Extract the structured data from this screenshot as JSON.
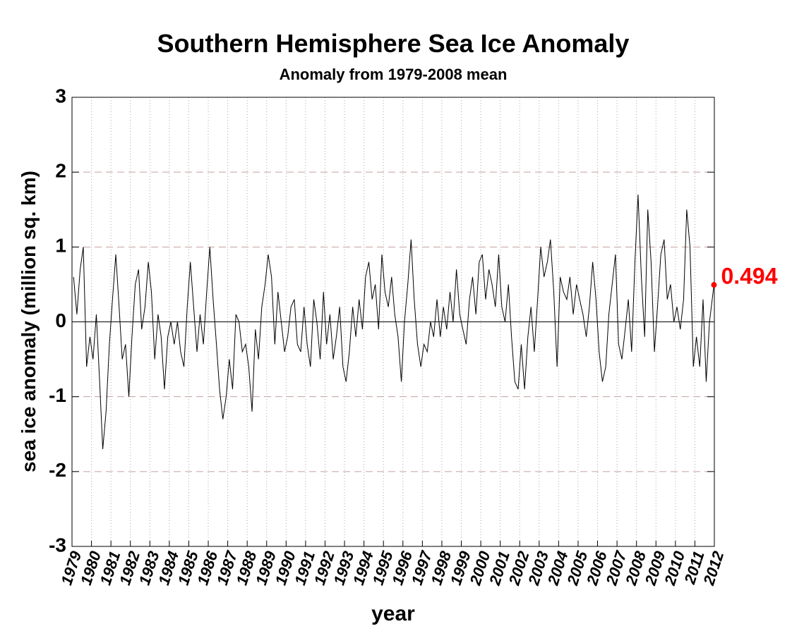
{
  "chart_data": {
    "type": "line",
    "title": "Southern Hemisphere Sea Ice Anomaly",
    "subtitle": "Anomaly from 1979-2008 mean",
    "x_label": "year",
    "y_label": "sea ice anomaly (million sq. km)",
    "xlim": [
      1979,
      2012
    ],
    "ylim": [
      -3,
      3
    ],
    "xticks": [
      1979,
      1980,
      1981,
      1982,
      1983,
      1984,
      1985,
      1986,
      1987,
      1988,
      1989,
      1990,
      1991,
      1992,
      1993,
      1994,
      1995,
      1996,
      1997,
      1998,
      1999,
      2000,
      2001,
      2002,
      2003,
      2004,
      2005,
      2006,
      2007,
      2008,
      2009,
      2010,
      2011,
      2012
    ],
    "yticks": [
      -3,
      -2,
      -1,
      0,
      1,
      2,
      3
    ],
    "grid": true,
    "zero_line": true,
    "highlight_color": "#ff0000",
    "x": [
      1979.08,
      1979.25,
      1979.42,
      1979.58,
      1979.75,
      1979.92,
      1980.08,
      1980.25,
      1980.42,
      1980.58,
      1980.75,
      1980.92,
      1981.08,
      1981.25,
      1981.42,
      1981.58,
      1981.75,
      1981.92,
      1982.08,
      1982.25,
      1982.42,
      1982.58,
      1982.75,
      1982.92,
      1983.08,
      1983.25,
      1983.42,
      1983.58,
      1983.75,
      1983.92,
      1984.08,
      1984.25,
      1984.42,
      1984.58,
      1984.75,
      1984.92,
      1985.08,
      1985.25,
      1985.42,
      1985.58,
      1985.75,
      1985.92,
      1986.08,
      1986.25,
      1986.42,
      1986.58,
      1986.75,
      1986.92,
      1987.08,
      1987.25,
      1987.42,
      1987.58,
      1987.75,
      1987.92,
      1988.08,
      1988.25,
      1988.42,
      1988.58,
      1988.75,
      1988.92,
      1989.08,
      1989.25,
      1989.42,
      1989.58,
      1989.75,
      1989.92,
      1990.08,
      1990.25,
      1990.42,
      1990.58,
      1990.75,
      1990.92,
      1991.08,
      1991.25,
      1991.42,
      1991.58,
      1991.75,
      1991.92,
      1992.08,
      1992.25,
      1992.42,
      1992.58,
      1992.75,
      1992.92,
      1993.08,
      1993.25,
      1993.42,
      1993.58,
      1993.75,
      1993.92,
      1994.08,
      1994.25,
      1994.42,
      1994.58,
      1994.75,
      1994.92,
      1995.08,
      1995.25,
      1995.42,
      1995.58,
      1995.75,
      1995.92,
      1996.08,
      1996.25,
      1996.42,
      1996.58,
      1996.75,
      1996.92,
      1997.08,
      1997.25,
      1997.42,
      1997.58,
      1997.75,
      1997.92,
      1998.08,
      1998.25,
      1998.42,
      1998.58,
      1998.75,
      1998.92,
      1999.08,
      1999.25,
      1999.42,
      1999.58,
      1999.75,
      1999.92,
      2000.08,
      2000.25,
      2000.42,
      2000.58,
      2000.75,
      2000.92,
      2001.08,
      2001.25,
      2001.42,
      2001.58,
      2001.75,
      2001.92,
      2002.08,
      2002.25,
      2002.42,
      2002.58,
      2002.75,
      2002.92,
      2003.08,
      2003.25,
      2003.42,
      2003.58,
      2003.75,
      2003.92,
      2004.08,
      2004.25,
      2004.42,
      2004.58,
      2004.75,
      2004.92,
      2005.08,
      2005.25,
      2005.42,
      2005.58,
      2005.75,
      2005.92,
      2006.08,
      2006.25,
      2006.42,
      2006.58,
      2006.75,
      2006.92,
      2007.08,
      2007.25,
      2007.42,
      2007.58,
      2007.75,
      2007.92,
      2008.08,
      2008.25,
      2008.42,
      2008.58,
      2008.75,
      2008.92,
      2009.08,
      2009.25,
      2009.42,
      2009.58,
      2009.75,
      2009.92,
      2010.08,
      2010.25,
      2010.42,
      2010.58,
      2010.75,
      2010.92,
      2011.08,
      2011.25,
      2011.42,
      2011.58,
      2011.75,
      2011.98
    ],
    "series": [
      {
        "color": "#000000",
        "values": [
          0.6,
          0.1,
          0.7,
          1.0,
          -0.6,
          -0.2,
          -0.5,
          0.1,
          -0.8,
          -1.7,
          -1.2,
          -0.3,
          0.3,
          0.9,
          0.2,
          -0.5,
          -0.3,
          -1.0,
          -0.2,
          0.5,
          0.7,
          -0.1,
          0.2,
          0.8,
          0.4,
          -0.5,
          0.1,
          -0.2,
          -0.9,
          -0.2,
          0.0,
          -0.3,
          0.0,
          -0.4,
          -0.6,
          0.2,
          0.8,
          0.2,
          -0.4,
          0.1,
          -0.3,
          0.4,
          1.0,
          0.3,
          -0.3,
          -0.9,
          -1.3,
          -1.0,
          -0.5,
          -0.9,
          0.1,
          0.0,
          -0.4,
          -0.3,
          -0.6,
          -1.2,
          -0.1,
          -0.5,
          0.2,
          0.5,
          0.9,
          0.6,
          -0.3,
          0.4,
          0.0,
          -0.4,
          -0.2,
          0.2,
          0.3,
          -0.3,
          -0.4,
          0.2,
          -0.3,
          -0.6,
          0.3,
          0.0,
          -0.5,
          0.4,
          -0.3,
          0.1,
          -0.5,
          -0.2,
          0.2,
          -0.6,
          -0.8,
          -0.4,
          0.2,
          -0.2,
          0.3,
          -0.1,
          0.6,
          0.8,
          0.3,
          0.5,
          -0.1,
          0.9,
          0.4,
          0.2,
          0.6,
          0.1,
          -0.2,
          -0.8,
          0.0,
          0.5,
          1.1,
          0.3,
          -0.3,
          -0.6,
          -0.3,
          -0.4,
          0.0,
          -0.2,
          0.3,
          -0.2,
          0.2,
          -0.1,
          0.4,
          0.0,
          0.7,
          0.1,
          -0.1,
          -0.3,
          0.3,
          0.6,
          0.1,
          0.8,
          0.9,
          0.3,
          0.7,
          0.5,
          0.2,
          0.9,
          0.2,
          0.0,
          0.5,
          -0.2,
          -0.8,
          -0.9,
          -0.3,
          -0.9,
          -0.2,
          0.2,
          -0.4,
          0.3,
          1.0,
          0.6,
          0.8,
          1.1,
          0.4,
          -0.6,
          0.6,
          0.4,
          0.3,
          0.6,
          0.1,
          0.5,
          0.3,
          0.1,
          -0.2,
          0.2,
          0.8,
          0.3,
          -0.4,
          -0.8,
          -0.6,
          0.1,
          0.5,
          0.9,
          -0.3,
          -0.5,
          -0.1,
          0.3,
          -0.4,
          0.8,
          1.7,
          0.6,
          -0.2,
          1.5,
          0.8,
          -0.4,
          0.2,
          0.9,
          1.1,
          0.3,
          0.5,
          0.0,
          0.2,
          -0.1,
          0.3,
          1.5,
          1.0,
          -0.6,
          -0.2,
          -0.6,
          0.3,
          -0.8,
          0.0,
          0.494
        ]
      }
    ]
  }
}
